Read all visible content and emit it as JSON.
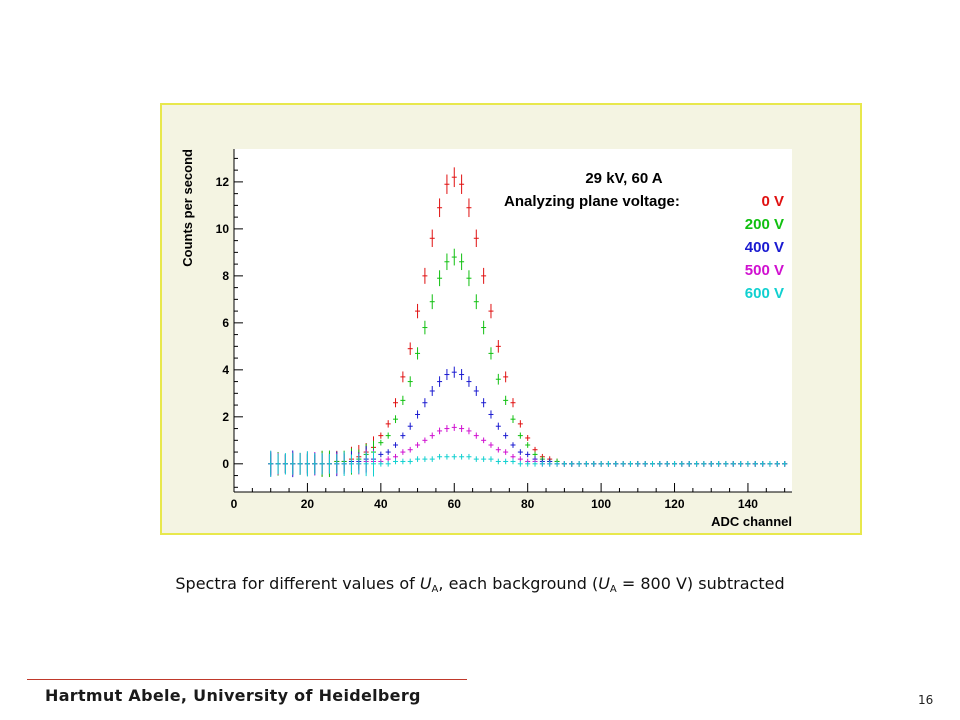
{
  "caption": {
    "pre": "Spectra for different values of ",
    "var1": "U",
    "sub1": "A",
    "mid": ", each background (",
    "var2": "U",
    "sub2": "A",
    "post": " = 800 V) subtracted"
  },
  "footer": {
    "author": "Hartmut Abele, University of Heidelberg",
    "page_number": "16"
  },
  "chart_data": {
    "type": "scatter",
    "xlabel": "ADC channel",
    "ylabel": "Counts per second",
    "xlim": [
      0,
      152
    ],
    "ylim": [
      -1.2,
      13.4
    ],
    "xticks": [
      0,
      20,
      40,
      60,
      80,
      100,
      120,
      140
    ],
    "yticks": [
      0,
      2,
      4,
      6,
      8,
      10,
      12
    ],
    "grid": false,
    "legend": {
      "position": "top-right",
      "header": "29 kV, 60 A",
      "subheader": "Analyzing plane voltage:",
      "entries": [
        "0 V",
        "200 V",
        "400 V",
        "500 V",
        "600 V"
      ]
    },
    "series": [
      {
        "name": "0 V",
        "color": "#e01010",
        "peak": 12.2,
        "x": [
          10,
          12,
          14,
          16,
          18,
          20,
          22,
          24,
          26,
          28,
          30,
          32,
          34,
          36,
          38,
          40,
          42,
          44,
          46,
          48,
          50,
          52,
          54,
          56,
          58,
          60,
          62,
          64,
          66,
          68,
          70,
          72,
          74,
          76,
          78,
          80,
          82,
          84,
          86,
          88,
          90,
          92,
          94,
          96,
          98,
          100,
          102,
          104,
          106,
          108,
          110,
          112,
          114,
          116,
          118,
          120,
          122,
          124,
          126,
          128,
          130,
          132,
          134,
          136,
          138,
          140,
          142,
          144,
          146,
          148,
          150
        ],
        "y": [
          0,
          0,
          0,
          0,
          0,
          0,
          0,
          0,
          0,
          0.1,
          0.1,
          0.2,
          0.3,
          0.5,
          0.7,
          1.2,
          1.7,
          2.6,
          3.7,
          4.9,
          6.5,
          8,
          9.6,
          10.9,
          11.9,
          12.2,
          11.9,
          10.9,
          9.6,
          8,
          6.5,
          5,
          3.7,
          2.6,
          1.7,
          1.1,
          0.6,
          0.3,
          0.2,
          0.1,
          0,
          0,
          0,
          0,
          0,
          0,
          0,
          0,
          0,
          0,
          0,
          0,
          0,
          0,
          0,
          0,
          0,
          0,
          0,
          0,
          0,
          0,
          0,
          0,
          0,
          0,
          0,
          0,
          0,
          0,
          0
        ]
      },
      {
        "name": "200 V",
        "color": "#10c010",
        "peak": 8.8,
        "x": [
          10,
          12,
          14,
          16,
          18,
          20,
          22,
          24,
          26,
          28,
          30,
          32,
          34,
          36,
          38,
          40,
          42,
          44,
          46,
          48,
          50,
          52,
          54,
          56,
          58,
          60,
          62,
          64,
          66,
          68,
          70,
          72,
          74,
          76,
          78,
          80,
          82,
          84,
          86,
          88,
          90,
          92,
          94,
          96,
          98,
          100,
          102,
          104,
          106,
          108,
          110,
          112,
          114,
          116,
          118,
          120,
          122,
          124,
          126,
          128,
          130,
          132,
          134,
          136,
          138,
          140,
          142,
          144,
          146,
          148,
          150
        ],
        "y": [
          0,
          0,
          0,
          0,
          0,
          0,
          0,
          0,
          0,
          0.1,
          0.1,
          0.1,
          0.2,
          0.4,
          0.5,
          0.9,
          1.2,
          1.9,
          2.7,
          3.5,
          4.7,
          5.8,
          6.9,
          7.9,
          8.6,
          8.8,
          8.6,
          7.9,
          6.9,
          5.8,
          4.7,
          3.6,
          2.7,
          1.9,
          1.2,
          0.8,
          0.4,
          0.2,
          0.1,
          0.1,
          0,
          0,
          0,
          0,
          0,
          0,
          0,
          0,
          0,
          0,
          0,
          0,
          0,
          0,
          0,
          0,
          0,
          0,
          0,
          0,
          0,
          0,
          0,
          0,
          0,
          0,
          0,
          0,
          0,
          0,
          0
        ]
      },
      {
        "name": "400 V",
        "color": "#1a1ad0",
        "peak": 3.9,
        "x": [
          10,
          12,
          14,
          16,
          18,
          20,
          22,
          24,
          26,
          28,
          30,
          32,
          34,
          36,
          38,
          40,
          42,
          44,
          46,
          48,
          50,
          52,
          54,
          56,
          58,
          60,
          62,
          64,
          66,
          68,
          70,
          72,
          74,
          76,
          78,
          80,
          82,
          84,
          86,
          88,
          90,
          92,
          94,
          96,
          98,
          100,
          102,
          104,
          106,
          108,
          110,
          112,
          114,
          116,
          118,
          120,
          122,
          124,
          126,
          128,
          130,
          132,
          134,
          136,
          138,
          140,
          142,
          144,
          146,
          148,
          150
        ],
        "y": [
          0,
          0,
          0,
          0,
          0,
          0,
          0,
          0,
          0,
          0,
          0,
          0.1,
          0.1,
          0.2,
          0.2,
          0.4,
          0.5,
          0.8,
          1.2,
          1.6,
          2.1,
          2.6,
          3.1,
          3.5,
          3.8,
          3.9,
          3.8,
          3.5,
          3.1,
          2.6,
          2.1,
          1.6,
          1.2,
          0.8,
          0.5,
          0.4,
          0.2,
          0.1,
          0.1,
          0,
          0,
          0,
          0,
          0,
          0,
          0,
          0,
          0,
          0,
          0,
          0,
          0,
          0,
          0,
          0,
          0,
          0,
          0,
          0,
          0,
          0,
          0,
          0,
          0,
          0,
          0,
          0,
          0,
          0,
          0,
          0
        ]
      },
      {
        "name": "500 V",
        "color": "#d010d0",
        "peak": 1.55,
        "x": [
          10,
          12,
          14,
          16,
          18,
          20,
          22,
          24,
          26,
          28,
          30,
          32,
          34,
          36,
          38,
          40,
          42,
          44,
          46,
          48,
          50,
          52,
          54,
          56,
          58,
          60,
          62,
          64,
          66,
          68,
          70,
          72,
          74,
          76,
          78,
          80,
          82,
          84,
          86,
          88,
          90,
          92,
          94,
          96,
          98,
          100,
          102,
          104,
          106,
          108,
          110,
          112,
          114,
          116,
          118,
          120,
          122,
          124,
          126,
          128,
          130,
          132,
          134,
          136,
          138,
          140,
          142,
          144,
          146,
          148,
          150
        ],
        "y": [
          0,
          0,
          0,
          0,
          0,
          0,
          0,
          0,
          0,
          0,
          0,
          0,
          0,
          0.1,
          0.1,
          0.1,
          0.2,
          0.3,
          0.5,
          0.6,
          0.8,
          1,
          1.2,
          1.4,
          1.5,
          1.55,
          1.5,
          1.4,
          1.2,
          1,
          0.8,
          0.6,
          0.5,
          0.3,
          0.2,
          0.1,
          0.1,
          0,
          0,
          0,
          0,
          0,
          0,
          0,
          0,
          0,
          0,
          0,
          0,
          0,
          0,
          0,
          0,
          0,
          0,
          0,
          0,
          0,
          0,
          0,
          0,
          0,
          0,
          0,
          0,
          0,
          0,
          0,
          0,
          0,
          0
        ]
      },
      {
        "name": "600 V",
        "color": "#10d0d0",
        "peak": 0.3,
        "x": [
          10,
          12,
          14,
          16,
          18,
          20,
          22,
          24,
          26,
          28,
          30,
          32,
          34,
          36,
          38,
          40,
          42,
          44,
          46,
          48,
          50,
          52,
          54,
          56,
          58,
          60,
          62,
          64,
          66,
          68,
          70,
          72,
          74,
          76,
          78,
          80,
          82,
          84,
          86,
          88,
          90,
          92,
          94,
          96,
          98,
          100,
          102,
          104,
          106,
          108,
          110,
          112,
          114,
          116,
          118,
          120,
          122,
          124,
          126,
          128,
          130,
          132,
          134,
          136,
          138,
          140,
          142,
          144,
          146,
          148,
          150
        ],
        "y": [
          0,
          0,
          0,
          0,
          0,
          0,
          0,
          0,
          0,
          0,
          0,
          0,
          0,
          0,
          0,
          0,
          0,
          0.1,
          0.1,
          0.1,
          0.2,
          0.2,
          0.2,
          0.3,
          0.3,
          0.3,
          0.3,
          0.3,
          0.2,
          0.2,
          0.2,
          0.1,
          0.1,
          0.1,
          0,
          0,
          0,
          0,
          0,
          0,
          0,
          0,
          0,
          0,
          0,
          0,
          0,
          0,
          0,
          0,
          0,
          0,
          0,
          0,
          0,
          0,
          0,
          0,
          0,
          0,
          0,
          0,
          0,
          0,
          0,
          0,
          0,
          0,
          0,
          0,
          0
        ]
      }
    ]
  }
}
